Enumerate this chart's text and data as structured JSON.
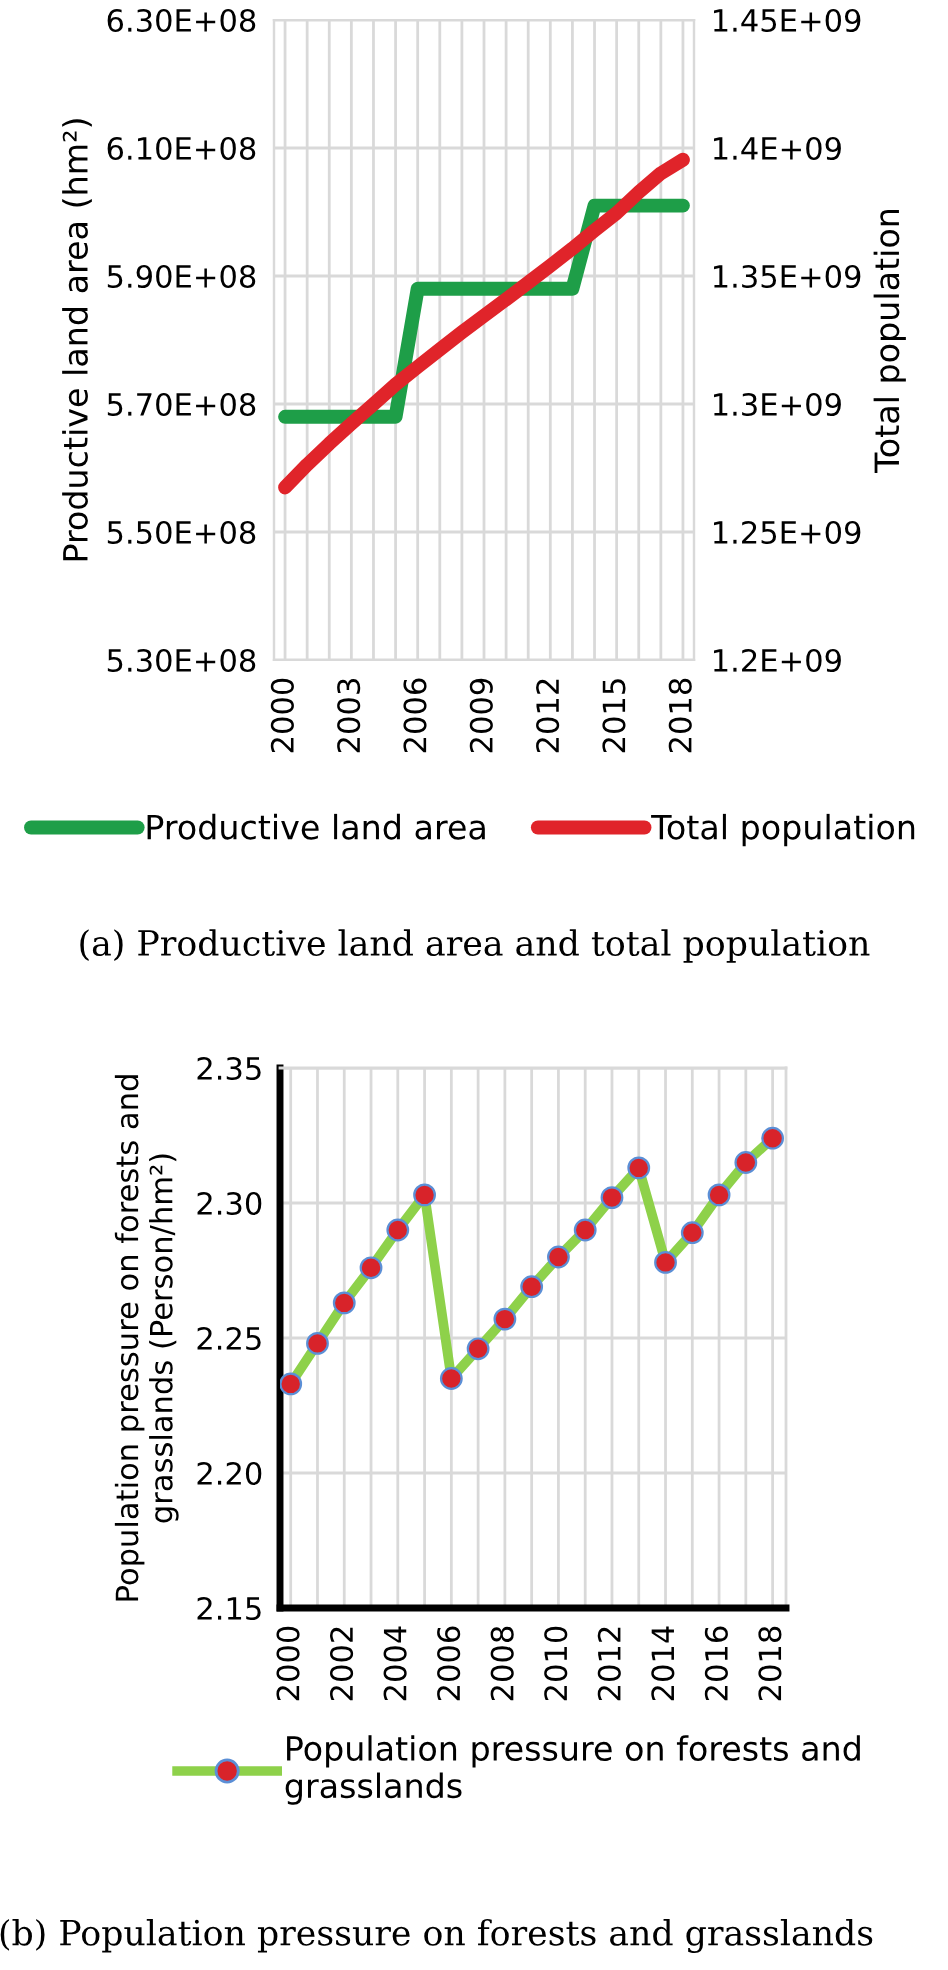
{
  "chart_data": [
    {
      "type": "line",
      "x": [
        2000,
        2001,
        2002,
        2003,
        2004,
        2005,
        2006,
        2007,
        2008,
        2009,
        2010,
        2011,
        2012,
        2013,
        2014,
        2015,
        2016,
        2017,
        2018
      ],
      "series": [
        {
          "name": "Productive land area",
          "color": "#1e9e48",
          "values": [
            568000000.0,
            568000000.0,
            568000000.0,
            568000000.0,
            568000000.0,
            568000000.0,
            588000000.0,
            588000000.0,
            588000000.0,
            588000000.0,
            588000000.0,
            588000000.0,
            588000000.0,
            588000000.0,
            601000000.0,
            601000000.0,
            601000000.0,
            601000000.0,
            601000000.0
          ]
        },
        {
          "name": "Total population",
          "color": "#e0242a",
          "axis": "y2",
          "values": [
            1267400000.0,
            1276300000.0,
            1284500000.0,
            1292300000.0,
            1299900000.0,
            1307600000.0,
            1314500000.0,
            1321300000.0,
            1328000000.0,
            1334500000.0,
            1340900000.0,
            1347400000.0,
            1354000000.0,
            1360700000.0,
            1367800000.0,
            1374600000.0,
            1382700000.0,
            1390100000.0,
            1395400000.0
          ]
        }
      ],
      "ylabel": "Productive land area (hm²)",
      "y2label": "Total population",
      "xlim": [
        1999.5,
        2018.5
      ],
      "xticks": [
        2000,
        {
          "value": 2001,
          "label": null
        },
        {
          "value": 2002,
          "label": null
        },
        2003,
        {
          "value": 2004,
          "label": null
        },
        {
          "value": 2005,
          "label": null
        },
        2006,
        {
          "value": 2007,
          "label": null
        },
        {
          "value": 2008,
          "label": null
        },
        2009,
        {
          "value": 2010,
          "label": null
        },
        {
          "value": 2011,
          "label": null
        },
        2012,
        {
          "value": 2013,
          "label": null
        },
        {
          "value": 2014,
          "label": null
        },
        2015,
        {
          "value": 2016,
          "label": null
        },
        {
          "value": 2017,
          "label": null
        },
        2018
      ],
      "ylim": [
        530000000.0,
        630000000.0
      ],
      "yticks": [
        {
          "value": 530000000.0,
          "label": "5.30E+08"
        },
        {
          "value": 550000000.0,
          "label": "5.50E+08"
        },
        {
          "value": 570000000.0,
          "label": "5.70E+08"
        },
        {
          "value": 590000000.0,
          "label": "5.90E+08"
        },
        {
          "value": 610000000.0,
          "label": "6.10E+08"
        },
        {
          "value": 630000000.0,
          "label": "6.30E+08"
        }
      ],
      "y2lim": [
        1200000000.0,
        1450000000.0
      ],
      "y2ticks": [
        {
          "value": 1200000000.0,
          "label": "1.2E+09"
        },
        {
          "value": 1250000000.0,
          "label": "1.25E+09"
        },
        {
          "value": 1300000000.0,
          "label": "1.3E+09"
        },
        {
          "value": 1350000000.0,
          "label": "1.35E+09"
        },
        {
          "value": 1400000000.0,
          "label": "1.4E+09"
        },
        {
          "value": 1450000000.0,
          "label": "1.45E+09"
        }
      ],
      "grid": true,
      "legend": "bottom",
      "marker": "none",
      "line_style": "solid",
      "annotations": [
        "(a) Productive land area and total population"
      ]
    },
    {
      "type": "line",
      "x": [
        2000,
        2001,
        2002,
        2003,
        2004,
        2005,
        2006,
        2007,
        2008,
        2009,
        2010,
        2011,
        2012,
        2013,
        2014,
        2015,
        2016,
        2017,
        2018
      ],
      "series": [
        {
          "name": "Population pressure on forests and grasslands",
          "color": "#8ed14a",
          "colors": [
            "#d8232a",
            "#d8232a",
            "#d8232a",
            "#d8232a",
            "#d8232a",
            "#d8232a",
            "#d8232a",
            "#d8232a",
            "#d8232a",
            "#d8232a",
            "#d8232a",
            "#d8232a",
            "#d8232a",
            "#d8232a",
            "#d8232a",
            "#d8232a",
            "#d8232a",
            "#d8232a",
            "#d8232a"
          ],
          "values": [
            2.233,
            2.248,
            2.263,
            2.276,
            2.29,
            2.303,
            2.235,
            2.246,
            2.257,
            2.269,
            2.28,
            2.29,
            2.302,
            2.313,
            2.278,
            2.289,
            2.303,
            2.315,
            2.324
          ]
        }
      ],
      "ylabel": "Population pressure on forests and grasslands (Person/hm²)",
      "xlim": [
        1999.6,
        2018.5
      ],
      "xticks": [
        2000,
        {
          "value": 2001,
          "label": null
        },
        2002,
        {
          "value": 2003,
          "label": null
        },
        2004,
        {
          "value": 2005,
          "label": null
        },
        2006,
        {
          "value": 2007,
          "label": null
        },
        2008,
        {
          "value": 2009,
          "label": null
        },
        2010,
        {
          "value": 2011,
          "label": null
        },
        2012,
        {
          "value": 2013,
          "label": null
        },
        2014,
        {
          "value": 2015,
          "label": null
        },
        2016,
        {
          "value": 2017,
          "label": null
        },
        2018
      ],
      "ylim": [
        2.15,
        2.35
      ],
      "yticks": [
        {
          "value": 2.15,
          "label": "2.15"
        },
        {
          "value": 2.2,
          "label": "2.20"
        },
        {
          "value": 2.25,
          "label": "2.25"
        },
        {
          "value": 2.3,
          "label": "2.30"
        },
        {
          "value": 2.35,
          "label": "2.35"
        }
      ],
      "grid": true,
      "legend": "bottom",
      "marker": "circle",
      "line_style": "solid",
      "annotations": [
        "(b) Population pressure on forests and grasslands"
      ]
    }
  ]
}
